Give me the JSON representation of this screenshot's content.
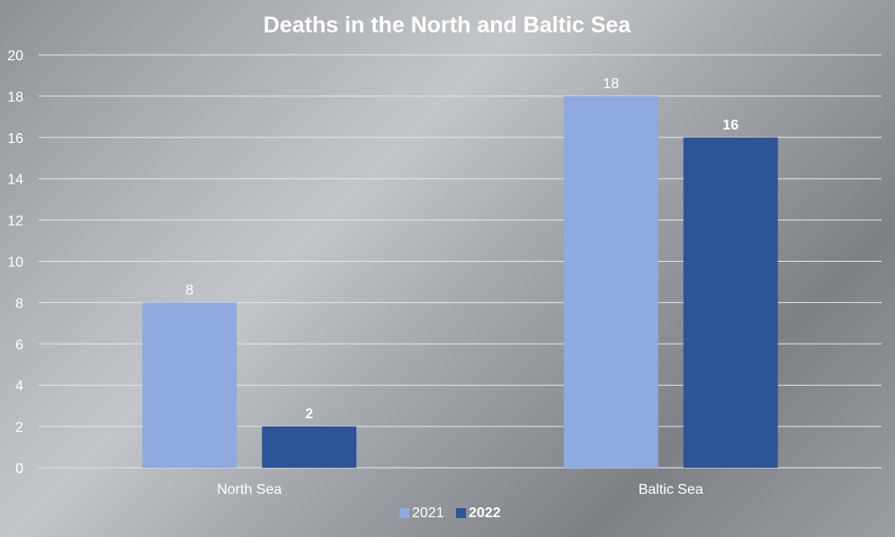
{
  "chart_data": {
    "type": "bar",
    "title": "Deaths in the North and Baltic Sea",
    "xlabel": "",
    "ylabel": "",
    "categories": [
      "North Sea",
      "Baltic Sea"
    ],
    "series": [
      {
        "name": "2021",
        "values": [
          8,
          18
        ],
        "color": "#8eaadf",
        "label_bold": false
      },
      {
        "name": "2022",
        "values": [
          2,
          16
        ],
        "color": "#2c5496",
        "label_bold": true
      }
    ],
    "ylim": [
      0,
      20
    ],
    "yticks": [
      "0",
      "2",
      "4",
      "6",
      "8",
      "10",
      "12",
      "14",
      "16",
      "18",
      "20"
    ],
    "grid": true,
    "legend_position": "bottom-center",
    "data_labels": true
  }
}
